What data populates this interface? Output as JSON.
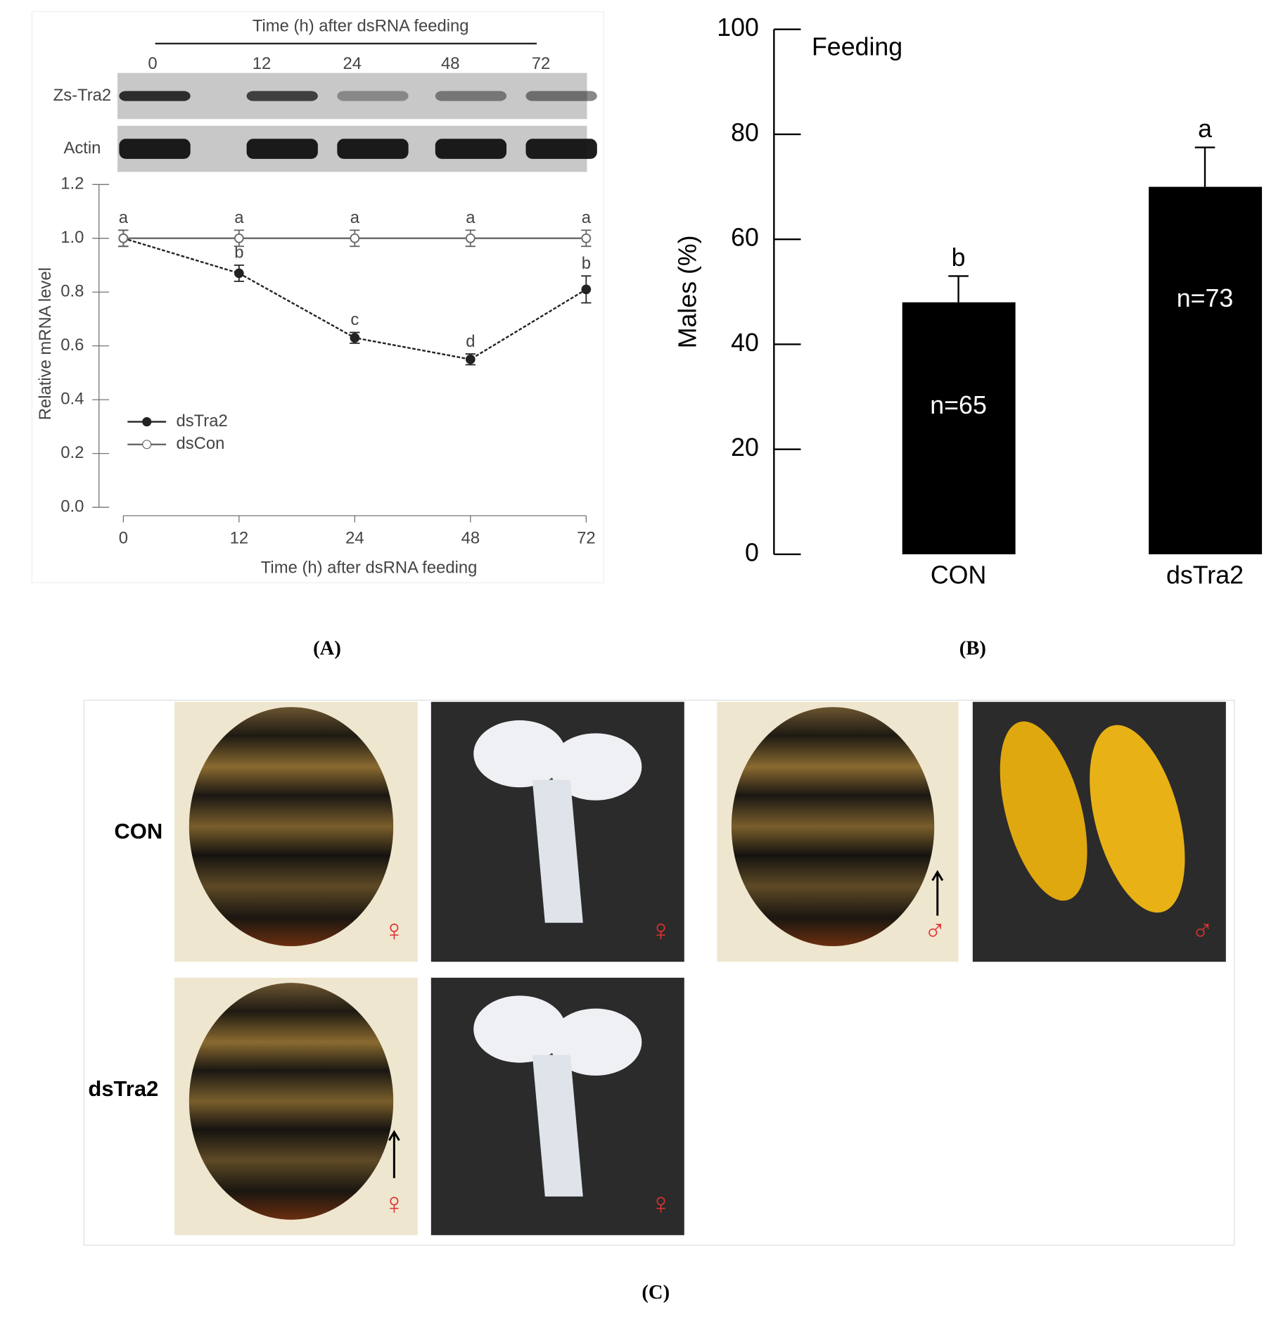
{
  "panel_labels": [
    "(A)",
    "(B)",
    "(C)"
  ],
  "blot": {
    "title": "Time (h) after dsRNA feeding",
    "lanes": [
      "0",
      "12",
      "24",
      "48",
      "72"
    ],
    "rows": [
      "Zs-Tra2",
      "Actin"
    ]
  },
  "chart_data": [
    {
      "type": "line",
      "xlabel": "Time (h) after dsRNA feeding",
      "ylabel": "Relative mRNA level",
      "categories": [
        "0",
        "12",
        "24",
        "48",
        "72"
      ],
      "ylim": [
        0,
        1.2
      ],
      "yticks": [
        {
          "value": 0,
          "label": "0.0"
        },
        {
          "value": 0.2,
          "label": "0.2"
        },
        {
          "value": 0.4,
          "label": "0.4"
        },
        {
          "value": 0.6,
          "label": "0.6"
        },
        {
          "value": 0.8,
          "label": "0.8"
        },
        {
          "value": 1,
          "label": "1.0"
        },
        {
          "value": 1.2,
          "label": "1.2"
        }
      ],
      "series": [
        {
          "name": "dsTra2",
          "color": "#222222",
          "marker": "filled",
          "values": [
            1.0,
            0.87,
            0.63,
            0.55,
            0.81
          ],
          "errors": [
            0.03,
            0.03,
            0.02,
            0.02,
            0.05
          ],
          "letters": [
            null,
            "b",
            "c",
            "d",
            "b"
          ]
        },
        {
          "name": "dsCon",
          "color": "#666666",
          "marker": "open",
          "values": [
            1,
            1,
            1,
            1,
            1
          ],
          "errors": [
            0.03,
            0.03,
            0.03,
            0.03,
            0.03
          ],
          "letters": [
            "a",
            "a",
            "a",
            "a",
            "a"
          ]
        }
      ]
    },
    {
      "type": "bar",
      "title": "Feeding",
      "ylabel": "Males (%)",
      "categories": [
        "CON",
        "dsTra2"
      ],
      "values": [
        48,
        70
      ],
      "errors": [
        5,
        7.5
      ],
      "letters": [
        "b",
        "a"
      ],
      "sample_sizes": [
        "n=65",
        "n=73"
      ],
      "color": "#000000",
      "ylim": [
        0,
        100
      ],
      "yticks": [
        0,
        20,
        40,
        60,
        80,
        100
      ]
    }
  ],
  "photo_panel": {
    "rows": [
      "CON",
      "dsTra2"
    ],
    "photos": [
      {
        "sex": "♀"
      },
      {
        "sex": "♀"
      },
      {
        "sex": "♂"
      },
      {
        "sex": "♂"
      },
      {
        "sex": "♀"
      },
      {
        "sex": "♀"
      }
    ]
  }
}
